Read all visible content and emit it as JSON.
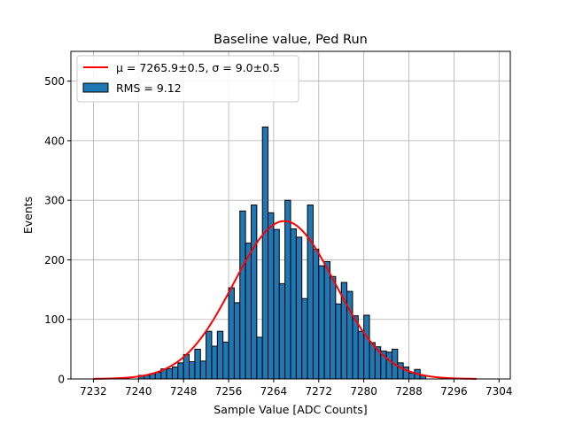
{
  "chart_data": {
    "type": "bar",
    "title": "Baseline value, Ped Run",
    "xlabel": "Sample Value [ADC Counts]",
    "ylabel": "Events",
    "xlim": [
      7228,
      7306
    ],
    "ylim": [
      0,
      550
    ],
    "xticks": [
      7232,
      7240,
      7248,
      7256,
      7264,
      7272,
      7280,
      7288,
      7296,
      7304
    ],
    "yticks": [
      0,
      100,
      200,
      300,
      400,
      500
    ],
    "grid": true,
    "legend_position": "top-left",
    "bin_width": 1,
    "bins": [
      [
        7240,
        6
      ],
      [
        7241,
        6
      ],
      [
        7242,
        9
      ],
      [
        7243,
        11
      ],
      [
        7244,
        17
      ],
      [
        7245,
        17
      ],
      [
        7246,
        20
      ],
      [
        7247,
        27
      ],
      [
        7248,
        41
      ],
      [
        7249,
        29
      ],
      [
        7250,
        50
      ],
      [
        7251,
        30
      ],
      [
        7252,
        80
      ],
      [
        7253,
        55
      ],
      [
        7254,
        80
      ],
      [
        7255,
        62
      ],
      [
        7256,
        153
      ],
      [
        7257,
        128
      ],
      [
        7258,
        282
      ],
      [
        7259,
        228
      ],
      [
        7260,
        292
      ],
      [
        7261,
        70
      ],
      [
        7262,
        423
      ],
      [
        7263,
        279
      ],
      [
        7264,
        251
      ],
      [
        7265,
        160
      ],
      [
        7266,
        300
      ],
      [
        7267,
        252
      ],
      [
        7268,
        238
      ],
      [
        7269,
        135
      ],
      [
        7270,
        292
      ],
      [
        7271,
        218
      ],
      [
        7272,
        190
      ],
      [
        7273,
        197
      ],
      [
        7274,
        172
      ],
      [
        7275,
        126
      ],
      [
        7276,
        162
      ],
      [
        7277,
        147
      ],
      [
        7278,
        106
      ],
      [
        7279,
        80
      ],
      [
        7280,
        107
      ],
      [
        7281,
        61
      ],
      [
        7282,
        54
      ],
      [
        7283,
        47
      ],
      [
        7284,
        45
      ],
      [
        7285,
        50
      ],
      [
        7286,
        27
      ],
      [
        7287,
        20
      ],
      [
        7288,
        10
      ],
      [
        7289,
        16
      ],
      [
        7290,
        6
      ]
    ],
    "series": [
      {
        "name": "RMS = 9.12",
        "kind": "histogram",
        "color": "#1f77b4"
      },
      {
        "name": "μ = 7265.9±0.5, σ = 9.0±0.5",
        "kind": "gaussian_fit",
        "color": "#ff0000",
        "mu": 7265.9,
        "sigma": 9.0,
        "amplitude": 265,
        "x_range": [
          7232,
          7300
        ]
      }
    ]
  }
}
